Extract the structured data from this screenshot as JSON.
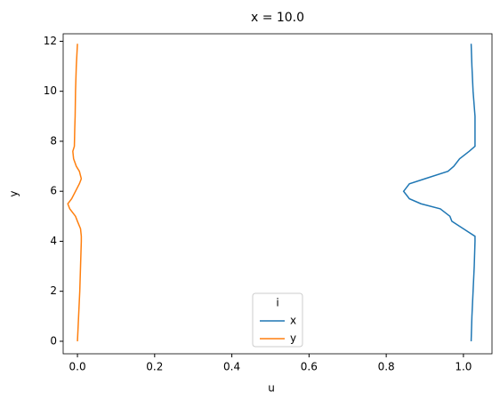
{
  "chart_data": {
    "type": "line",
    "title": "x = 10.0",
    "xlabel": "u",
    "ylabel": "y",
    "legend_title": "i",
    "legend": "lower center",
    "y": [
      0,
      1,
      2,
      3,
      4,
      4.2,
      4.5,
      4.8,
      5.0,
      5.3,
      5.5,
      5.7,
      6.0,
      6.3,
      6.5,
      6.8,
      7.0,
      7.3,
      7.6,
      7.8,
      8.5,
      9,
      10,
      11,
      11.9
    ],
    "series": [
      {
        "name": "x",
        "color": "#1f77b4",
        "values": [
          1.02,
          1.022,
          1.025,
          1.028,
          1.03,
          1.03,
          1.0,
          0.97,
          0.965,
          0.94,
          0.89,
          0.86,
          0.845,
          0.86,
          0.9,
          0.96,
          0.975,
          0.99,
          1.015,
          1.03,
          1.03,
          1.03,
          1.025,
          1.022,
          1.02
        ]
      },
      {
        "name": "y",
        "color": "#ff7f0e",
        "values": [
          0.0,
          0.003,
          0.006,
          0.008,
          0.01,
          0.01,
          0.008,
          0.0,
          -0.005,
          -0.02,
          -0.025,
          -0.015,
          -0.005,
          0.005,
          0.01,
          0.005,
          -0.003,
          -0.01,
          -0.012,
          -0.008,
          -0.007,
          -0.006,
          -0.005,
          -0.003,
          0.0
        ]
      }
    ],
    "xlim": [
      -0.037,
      1.074
    ],
    "ylim": [
      -0.5,
      12.3
    ],
    "xticks": [
      {
        "value": 0,
        "label": "0.0"
      },
      {
        "value": 0.2,
        "label": "0.2"
      },
      {
        "value": 0.4,
        "label": "0.4"
      },
      {
        "value": 0.6,
        "label": "0.6"
      },
      {
        "value": 0.8,
        "label": "0.8"
      },
      {
        "value": 1.0,
        "label": "1.0"
      }
    ],
    "yticks": [
      0,
      2,
      4,
      6,
      8,
      10,
      12
    ]
  }
}
